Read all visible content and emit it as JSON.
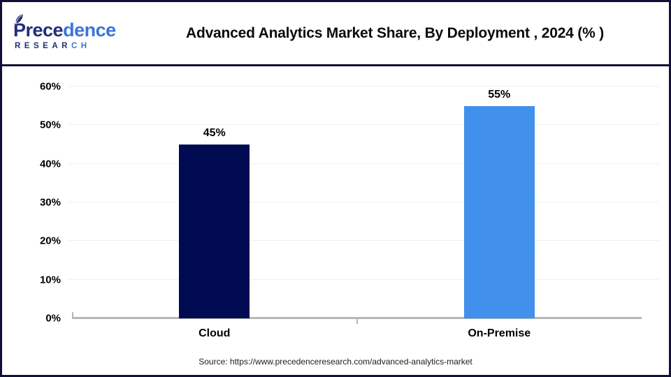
{
  "brand": {
    "script_dark": "Prece",
    "script_light": "dence",
    "caps_dark": "RESEAR",
    "caps_light": "CH",
    "color_dark": "#222e7a",
    "color_light": "#3c74d9"
  },
  "header": {
    "title": "Advanced Analytics Market Share, By Deployment , 2024 (% )"
  },
  "chart_data": {
    "type": "bar",
    "title": "Advanced Analytics Market Share, By Deployment , 2024 (% )",
    "categories": [
      "Cloud",
      "On-Premise"
    ],
    "values": [
      45,
      55
    ],
    "value_labels": [
      "45%",
      "55%"
    ],
    "bar_colors": [
      "#010b52",
      "#4190ec"
    ],
    "xlabel": "",
    "ylabel": "",
    "ylim": [
      0,
      60
    ],
    "ytick_step": 10,
    "ytick_suffix": "%",
    "ytick_labels": [
      "0%",
      "10%",
      "20%",
      "30%",
      "40%",
      "50%",
      "60%"
    ],
    "grid": true,
    "legend": "none",
    "gridline_color": "#edf0f2",
    "axis_color": "#b6b6b6"
  },
  "footer": {
    "source": "Source: https://www.precedenceresearch.com/advanced-analytics-market"
  }
}
